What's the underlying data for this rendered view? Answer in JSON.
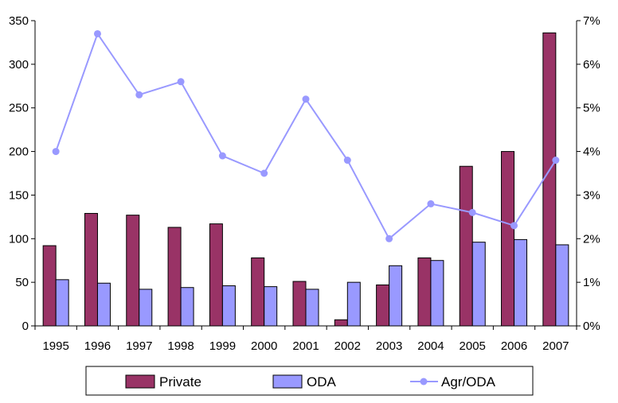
{
  "chart_data": {
    "type": "bar",
    "categories": [
      "1995",
      "1996",
      "1997",
      "1998",
      "1999",
      "2000",
      "2001",
      "2002",
      "2003",
      "2004",
      "2005",
      "2006",
      "2007"
    ],
    "series": [
      {
        "name": "Private",
        "kind": "bar",
        "axis": "left",
        "color": "#993366",
        "values": [
          92,
          129,
          127,
          113,
          117,
          78,
          51,
          7,
          47,
          78,
          183,
          200,
          336
        ]
      },
      {
        "name": "ODA",
        "kind": "bar",
        "axis": "left",
        "color": "#9999ff",
        "values": [
          53,
          49,
          42,
          44,
          46,
          45,
          42,
          50,
          69,
          75,
          96,
          99,
          93
        ]
      },
      {
        "name": "Agr/ODA",
        "kind": "line",
        "axis": "right",
        "color": "#9999ff",
        "values": [
          4.0,
          6.7,
          5.3,
          5.6,
          3.9,
          3.5,
          5.2,
          3.8,
          2.0,
          2.8,
          2.6,
          2.3,
          3.8
        ]
      }
    ],
    "left_axis": {
      "min": 0,
      "max": 350,
      "ticks": [
        "0",
        "50",
        "100",
        "150",
        "200",
        "250",
        "300",
        "350"
      ]
    },
    "right_axis": {
      "min": 0,
      "max": 7,
      "ticks": [
        "0%",
        "1%",
        "2%",
        "3%",
        "4%",
        "5%",
        "6%",
        "7%"
      ]
    },
    "title": "",
    "xlabel": "",
    "ylabel": "",
    "grid": false,
    "legend_position": "bottom"
  }
}
